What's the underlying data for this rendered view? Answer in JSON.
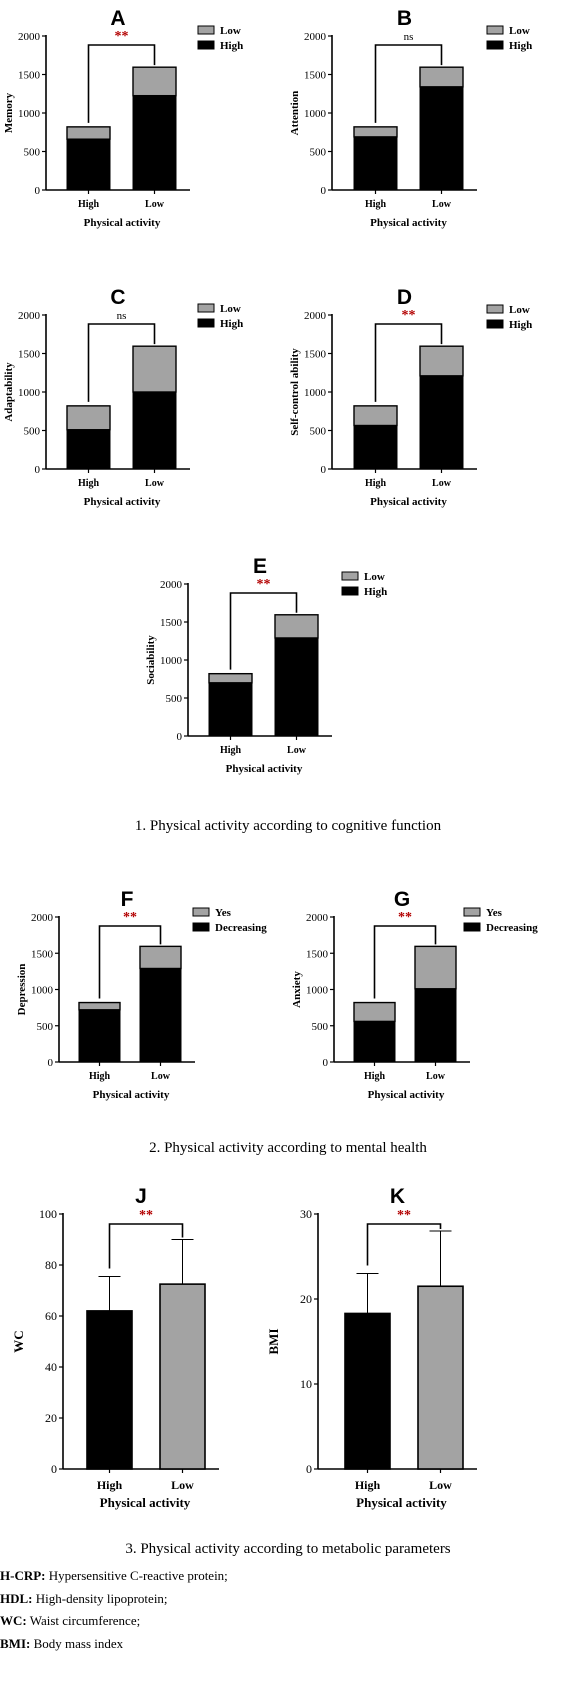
{
  "captions": [
    "1. Physical activity according to cognitive function",
    "2. Physical activity according to mental health",
    "3. Physical activity according to metabolic parameters"
  ],
  "abbreviations": [
    {
      "key": "H-CRP:",
      "text": "Hypersensitive C-reactive protein;"
    },
    {
      "key": "HDL:",
      "text": "High-density lipoprotein;"
    },
    {
      "key": "WC:",
      "text": "Waist circumference;"
    },
    {
      "key": "BMI:",
      "text": "Body mass index"
    }
  ],
  "colors": {
    "dark": "#000000",
    "light": "#a3a3a3",
    "sig": "#b30000"
  },
  "chart_data": [
    {
      "type": "bar",
      "stacked": true,
      "panel": "A",
      "categories": [
        "High",
        "Low"
      ],
      "xlabel": "Physical activity",
      "ylabel": "Memory",
      "ylim": [
        0,
        2000
      ],
      "yticks": [
        0,
        500,
        1000,
        1500,
        2000
      ],
      "series": [
        {
          "name": "High",
          "values": [
            660,
            1225
          ]
        },
        {
          "name": "Low",
          "values": [
            160,
            370
          ]
        }
      ],
      "legend": [
        "Low",
        "High"
      ],
      "significance": "**"
    },
    {
      "type": "bar",
      "stacked": true,
      "panel": "B",
      "categories": [
        "High",
        "Low"
      ],
      "xlabel": "Physical activity",
      "ylabel": "Attention",
      "ylim": [
        0,
        2000
      ],
      "yticks": [
        0,
        500,
        1000,
        1500,
        2000
      ],
      "series": [
        {
          "name": "High",
          "values": [
            690,
            1340
          ]
        },
        {
          "name": "Low",
          "values": [
            130,
            255
          ]
        }
      ],
      "legend": [
        "Low",
        "High"
      ],
      "significance": "ns"
    },
    {
      "type": "bar",
      "stacked": true,
      "panel": "C",
      "categories": [
        "High",
        "Low"
      ],
      "xlabel": "Physical activity",
      "ylabel": "Adaptability",
      "ylim": [
        0,
        2000
      ],
      "yticks": [
        0,
        500,
        1000,
        1500,
        2000
      ],
      "series": [
        {
          "name": "High",
          "values": [
            510,
            1000
          ]
        },
        {
          "name": "Low",
          "values": [
            310,
            595
          ]
        }
      ],
      "legend": [
        "Low",
        "High"
      ],
      "significance": "ns"
    },
    {
      "type": "bar",
      "stacked": true,
      "panel": "D",
      "categories": [
        "High",
        "Low"
      ],
      "xlabel": "Physical activity",
      "ylabel": "Self-control ability",
      "ylim": [
        0,
        2000
      ],
      "yticks": [
        0,
        500,
        1000,
        1500,
        2000
      ],
      "series": [
        {
          "name": "High",
          "values": [
            565,
            1210
          ]
        },
        {
          "name": "Low",
          "values": [
            255,
            385
          ]
        }
      ],
      "legend": [
        "Low",
        "High"
      ],
      "significance": "**"
    },
    {
      "type": "bar",
      "stacked": true,
      "panel": "E",
      "categories": [
        "High",
        "Low"
      ],
      "xlabel": "Physical activity",
      "ylabel": "Sociability",
      "ylim": [
        0,
        2000
      ],
      "yticks": [
        0,
        500,
        1000,
        1500,
        2000
      ],
      "series": [
        {
          "name": "High",
          "values": [
            700,
            1290
          ]
        },
        {
          "name": "Low",
          "values": [
            120,
            305
          ]
        }
      ],
      "legend": [
        "Low",
        "High"
      ],
      "significance": "**"
    },
    {
      "type": "bar",
      "stacked": true,
      "panel": "F",
      "categories": [
        "High",
        "Low"
      ],
      "xlabel": "Physical activity",
      "ylabel": "Depression",
      "ylim": [
        0,
        2000
      ],
      "yticks": [
        0,
        500,
        1000,
        1500,
        2000
      ],
      "series": [
        {
          "name": "Decreasing",
          "values": [
            720,
            1290
          ]
        },
        {
          "name": "Yes",
          "values": [
            100,
            305
          ]
        }
      ],
      "legend": [
        "Yes",
        "Decreasing"
      ],
      "significance": "**"
    },
    {
      "type": "bar",
      "stacked": true,
      "panel": "G",
      "categories": [
        "High",
        "Low"
      ],
      "xlabel": "Physical activity",
      "ylabel": "Anxiety",
      "ylim": [
        0,
        2000
      ],
      "yticks": [
        0,
        500,
        1000,
        1500,
        2000
      ],
      "series": [
        {
          "name": "Decreasing",
          "values": [
            560,
            1010
          ]
        },
        {
          "name": "Yes",
          "values": [
            260,
            585
          ]
        }
      ],
      "legend": [
        "Yes",
        "Decreasing"
      ],
      "significance": "**"
    },
    {
      "type": "bar",
      "panel": "J",
      "categories": [
        "High",
        "Low"
      ],
      "xlabel": "Physical activity",
      "ylabel": "WC",
      "ylim": [
        0,
        100
      ],
      "yticks": [
        0,
        20,
        40,
        60,
        80,
        100
      ],
      "values": [
        62,
        72.5
      ],
      "errors": [
        13.5,
        17.5
      ],
      "significance": "**"
    },
    {
      "type": "bar",
      "panel": "K",
      "categories": [
        "High",
        "Low"
      ],
      "xlabel": "Physical activity",
      "ylabel": "BMI",
      "ylim": [
        0,
        30
      ],
      "yticks": [
        0,
        10,
        20,
        30
      ],
      "values": [
        18.3,
        21.5
      ],
      "errors": [
        4.7,
        6.5
      ],
      "significance": "**"
    }
  ]
}
